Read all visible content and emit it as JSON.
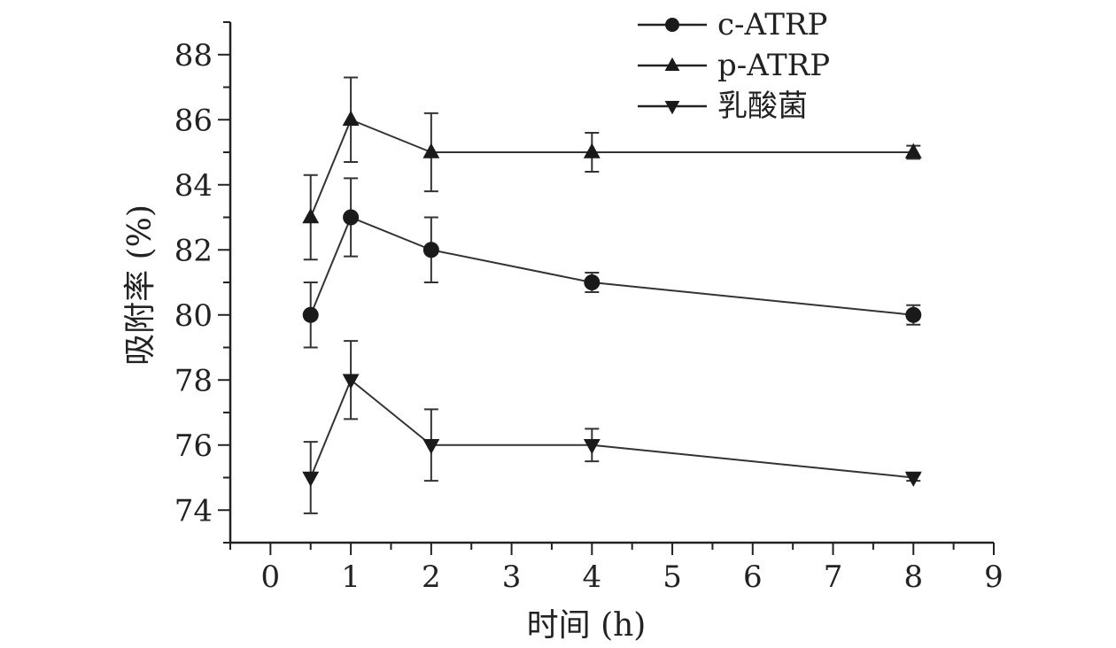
{
  "chart_data": {
    "type": "line",
    "title": "",
    "xlabel": "时间 (h)",
    "ylabel": "吸附率 (%)",
    "xlim": [
      -0.5,
      9
    ],
    "ylim": [
      73,
      89
    ],
    "xticks": [
      0,
      1,
      2,
      3,
      4,
      5,
      6,
      7,
      8,
      9
    ],
    "yticks": [
      74,
      76,
      78,
      80,
      82,
      84,
      86,
      88
    ],
    "grid": false,
    "legend_position": "top-right",
    "series": [
      {
        "name": "c-ATRP",
        "marker": "circle",
        "x": [
          0.5,
          1,
          2,
          4,
          8
        ],
        "y": [
          80,
          83,
          82,
          81,
          80
        ],
        "error": [
          1.0,
          1.2,
          1.0,
          0.3,
          0.3
        ]
      },
      {
        "name": "p-ATRP",
        "marker": "triangle-up",
        "x": [
          0.5,
          1,
          2,
          4,
          8
        ],
        "y": [
          83,
          86,
          85,
          85,
          85
        ],
        "error": [
          1.3,
          1.3,
          1.2,
          0.6,
          0.2
        ]
      },
      {
        "name": "乳酸菌",
        "marker": "triangle-down",
        "x": [
          0.5,
          1,
          2,
          4,
          8
        ],
        "y": [
          75,
          78,
          76,
          76,
          75
        ],
        "error": [
          1.1,
          1.2,
          1.1,
          0.5,
          0.1
        ]
      }
    ]
  }
}
